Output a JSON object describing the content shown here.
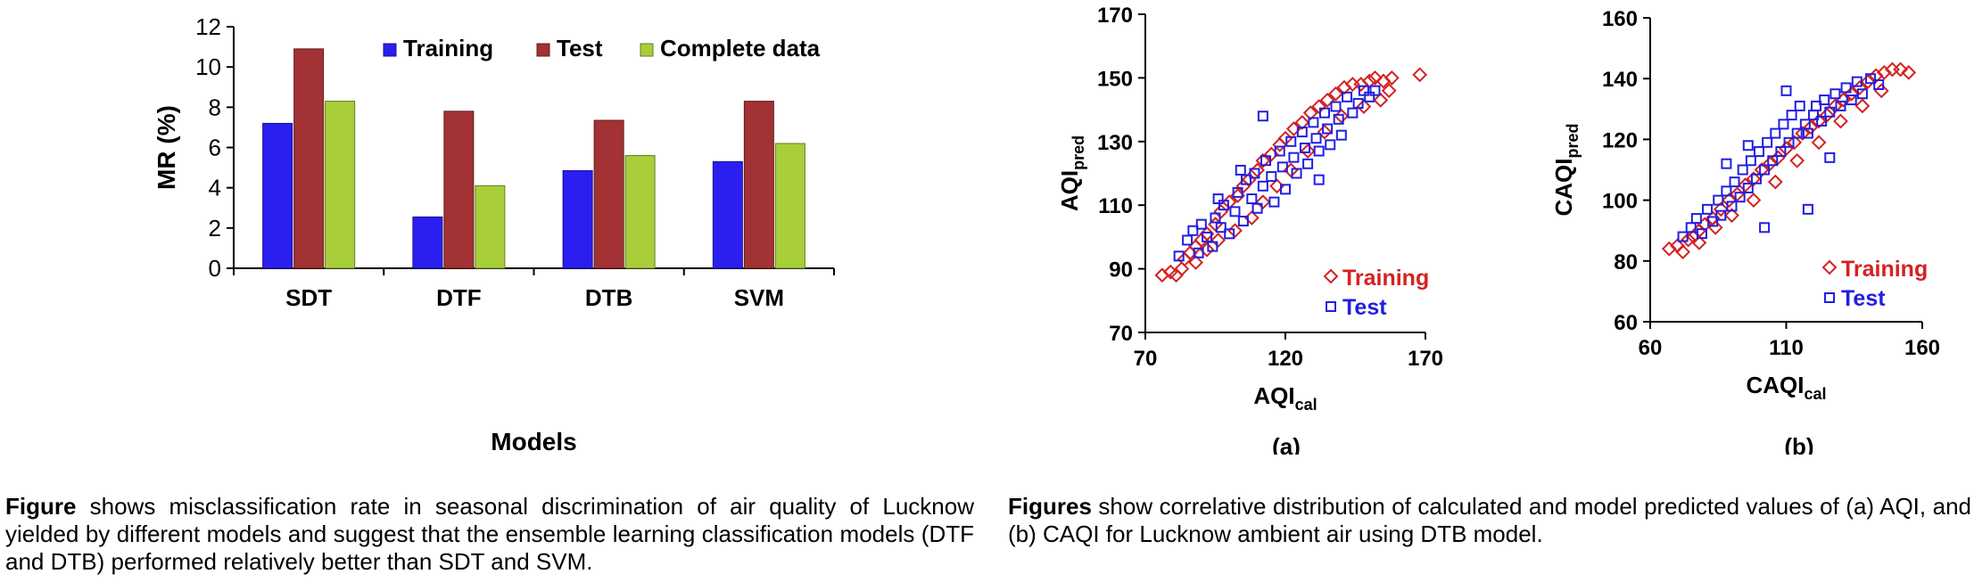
{
  "chart_data": [
    {
      "type": "bar",
      "xlabel": "Models",
      "ylabel": "MR (%)",
      "categories": [
        "SDT",
        "DTF",
        "DTB",
        "SVM"
      ],
      "ylim": [
        0,
        12
      ],
      "yticks": [
        0,
        2,
        4,
        6,
        8,
        10,
        12
      ],
      "legend_position": "top-right",
      "series": [
        {
          "name": "Training",
          "color": "#2a1ef0",
          "values": [
            7.2,
            2.55,
            4.85,
            5.3
          ]
        },
        {
          "name": "Test",
          "color": "#a23233",
          "values": [
            10.9,
            7.8,
            7.35,
            8.3
          ]
        },
        {
          "name": "Complete data",
          "color": "#a8cf3a",
          "values": [
            8.3,
            4.1,
            5.6,
            6.2
          ]
        }
      ]
    },
    {
      "type": "scatter",
      "panel_label": "(a)",
      "xlabel_main": "AQI",
      "xlabel_sub": "cal",
      "ylabel_main": "AQI",
      "ylabel_sub": "pred",
      "xlim": [
        70,
        170
      ],
      "ylim": [
        70,
        170
      ],
      "xticks": [
        70,
        120,
        170
      ],
      "yticks": [
        70,
        90,
        110,
        130,
        150,
        170
      ],
      "legend_position": "bottom-right",
      "series": [
        {
          "name": "Training",
          "marker": "diamond",
          "color": "#d42222",
          "points": [
            [
              76,
              88
            ],
            [
              79,
              89
            ],
            [
              81,
              88
            ],
            [
              83,
              90
            ],
            [
              84,
              93
            ],
            [
              86,
              95
            ],
            [
              88,
              97
            ],
            [
              90,
              99
            ],
            [
              92,
              101
            ],
            [
              95,
              104
            ],
            [
              97,
              108
            ],
            [
              100,
              111
            ],
            [
              103,
              113
            ],
            [
              105,
              116
            ],
            [
              107,
              118
            ],
            [
              110,
              121
            ],
            [
              112,
              124
            ],
            [
              115,
              126
            ],
            [
              118,
              129
            ],
            [
              120,
              131
            ],
            [
              123,
              134
            ],
            [
              126,
              136
            ],
            [
              129,
              139
            ],
            [
              132,
              141
            ],
            [
              135,
              143
            ],
            [
              138,
              145
            ],
            [
              141,
              147
            ],
            [
              144,
              148
            ],
            [
              147,
              148
            ],
            [
              150,
              149
            ],
            [
              152,
              150
            ],
            [
              155,
              149
            ],
            [
              158,
              150
            ],
            [
              168,
              151
            ],
            [
              157,
              146
            ],
            [
              154,
              143
            ],
            [
              148,
              141
            ],
            [
              140,
              138
            ],
            [
              134,
              133
            ],
            [
              128,
              127
            ],
            [
              122,
              121
            ],
            [
              117,
              116
            ],
            [
              112,
              111
            ],
            [
              108,
              106
            ],
            [
              102,
              102
            ],
            [
              96,
              99
            ],
            [
              92,
              96
            ],
            [
              88,
              92
            ]
          ]
        },
        {
          "name": "Test",
          "marker": "square",
          "color": "#2020e0",
          "points": [
            [
              82,
              94
            ],
            [
              85,
              99
            ],
            [
              87,
              102
            ],
            [
              89,
              95
            ],
            [
              90,
              104
            ],
            [
              92,
              100
            ],
            [
              94,
              97
            ],
            [
              95,
              106
            ],
            [
              97,
              103
            ],
            [
              98,
              110
            ],
            [
              100,
              101
            ],
            [
              102,
              108
            ],
            [
              103,
              114
            ],
            [
              105,
              105
            ],
            [
              106,
              118
            ],
            [
              108,
              112
            ],
            [
              109,
              120
            ],
            [
              110,
              109
            ],
            [
              112,
              116
            ],
            [
              113,
              124
            ],
            [
              115,
              119
            ],
            [
              116,
              111
            ],
            [
              118,
              127
            ],
            [
              119,
              122
            ],
            [
              120,
              115
            ],
            [
              122,
              130
            ],
            [
              123,
              125
            ],
            [
              124,
              120
            ],
            [
              126,
              133
            ],
            [
              127,
              128
            ],
            [
              128,
              123
            ],
            [
              130,
              136
            ],
            [
              131,
              131
            ],
            [
              132,
              127
            ],
            [
              134,
              139
            ],
            [
              135,
              134
            ],
            [
              136,
              129
            ],
            [
              138,
              141
            ],
            [
              139,
              137
            ],
            [
              140,
              132
            ],
            [
              142,
              144
            ],
            [
              144,
              139
            ],
            [
              146,
              142
            ],
            [
              148,
              146
            ],
            [
              150,
              144
            ],
            [
              152,
              146
            ],
            [
              112,
              138
            ],
            [
              104,
              121
            ],
            [
              132,
              118
            ],
            [
              96,
              112
            ]
          ]
        }
      ]
    },
    {
      "type": "scatter",
      "panel_label": "(b)",
      "xlabel_main": "CAQI",
      "xlabel_sub": "cal",
      "ylabel_main": "CAQI",
      "ylabel_sub": "pred",
      "xlim": [
        60,
        160
      ],
      "ylim": [
        60,
        160
      ],
      "xticks": [
        60,
        110,
        160
      ],
      "yticks": [
        60,
        80,
        100,
        120,
        140,
        160
      ],
      "legend_position": "bottom-right",
      "series": [
        {
          "name": "Training",
          "marker": "diamond",
          "color": "#d42222",
          "points": [
            [
              67,
              84
            ],
            [
              70,
              85
            ],
            [
              72,
              83
            ],
            [
              74,
              87
            ],
            [
              76,
              88
            ],
            [
              78,
              90
            ],
            [
              80,
              92
            ],
            [
              83,
              94
            ],
            [
              86,
              97
            ],
            [
              89,
              100
            ],
            [
              92,
              102
            ],
            [
              95,
              105
            ],
            [
              98,
              107
            ],
            [
              101,
              110
            ],
            [
              104,
              112
            ],
            [
              107,
              114
            ],
            [
              110,
              117
            ],
            [
              113,
              119
            ],
            [
              116,
              122
            ],
            [
              119,
              124
            ],
            [
              122,
              126
            ],
            [
              125,
              128
            ],
            [
              128,
              131
            ],
            [
              131,
              133
            ],
            [
              134,
              135
            ],
            [
              137,
              137
            ],
            [
              140,
              139
            ],
            [
              143,
              141
            ],
            [
              146,
              142
            ],
            [
              149,
              143
            ],
            [
              152,
              143
            ],
            [
              155,
              142
            ],
            [
              145,
              136
            ],
            [
              138,
              131
            ],
            [
              130,
              126
            ],
            [
              122,
              119
            ],
            [
              114,
              113
            ],
            [
              106,
              106
            ],
            [
              98,
              100
            ],
            [
              90,
              95
            ],
            [
              84,
              91
            ],
            [
              78,
              86
            ]
          ]
        },
        {
          "name": "Test",
          "marker": "square",
          "color": "#2020e0",
          "points": [
            [
              72,
              88
            ],
            [
              75,
              91
            ],
            [
              77,
              94
            ],
            [
              79,
              89
            ],
            [
              81,
              97
            ],
            [
              83,
              93
            ],
            [
              85,
              100
            ],
            [
              86,
              95
            ],
            [
              88,
              103
            ],
            [
              90,
              98
            ],
            [
              91,
              106
            ],
            [
              93,
              101
            ],
            [
              94,
              110
            ],
            [
              96,
              104
            ],
            [
              97,
              113
            ],
            [
              99,
              107
            ],
            [
              100,
              116
            ],
            [
              102,
              110
            ],
            [
              103,
              119
            ],
            [
              105,
              113
            ],
            [
              106,
              122
            ],
            [
              108,
              116
            ],
            [
              109,
              125
            ],
            [
              111,
              119
            ],
            [
              112,
              128
            ],
            [
              114,
              122
            ],
            [
              115,
              131
            ],
            [
              117,
              125
            ],
            [
              118,
              122
            ],
            [
              120,
              128
            ],
            [
              121,
              131
            ],
            [
              123,
              126
            ],
            [
              124,
              133
            ],
            [
              126,
              129
            ],
            [
              128,
              135
            ],
            [
              130,
              131
            ],
            [
              132,
              137
            ],
            [
              134,
              133
            ],
            [
              136,
              139
            ],
            [
              138,
              135
            ],
            [
              141,
              140
            ],
            [
              144,
              138
            ],
            [
              110,
              136
            ],
            [
              96,
              118
            ],
            [
              118,
              97
            ],
            [
              102,
              91
            ],
            [
              88,
              112
            ],
            [
              126,
              114
            ]
          ]
        }
      ]
    }
  ],
  "captions": {
    "left_bold": "Figure",
    "left_text": " shows misclassification rate in seasonal discrimination of air quality of Lucknow yielded by different models and suggest that the ensemble learning classification models (DTF and DTB) performed relatively better than SDT and SVM.",
    "right_bold": "Figures",
    "right_text": " show correlative distribution of calculated and model predicted values of (a) AQI, and (b) CAQI for Lucknow ambient air using DTB model."
  }
}
